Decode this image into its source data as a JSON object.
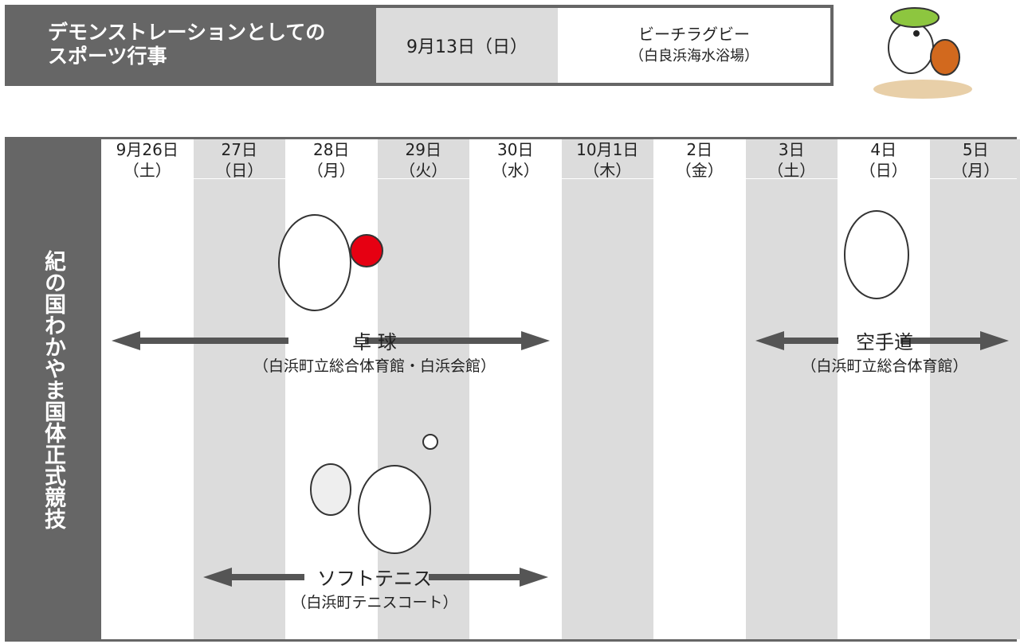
{
  "header": {
    "title_lines": [
      "デモンストレーションとしての",
      "スポーツ行事"
    ],
    "date": "9月13日（日）",
    "event": "ビーチラグビー",
    "venue": "（白良浜海水浴場）"
  },
  "schedule": {
    "row_label": "紀の国わかやま国体正式競技",
    "days": [
      {
        "date": "9月26日",
        "weekday": "（土）"
      },
      {
        "date": "27日",
        "weekday": "（日）"
      },
      {
        "date": "28日",
        "weekday": "（月）"
      },
      {
        "date": "29日",
        "weekday": "（火）"
      },
      {
        "date": "30日",
        "weekday": "（水）"
      },
      {
        "date": "10月1日",
        "weekday": "（木）"
      },
      {
        "date": "2日",
        "weekday": "（金）"
      },
      {
        "date": "3日",
        "weekday": "（土）"
      },
      {
        "date": "4日",
        "weekday": "（日）"
      },
      {
        "date": "5日",
        "weekday": "（月）"
      }
    ],
    "events": [
      {
        "name": "卓 球",
        "venue": "（白浜町立総合体育館・白浜会館）"
      },
      {
        "name": "空手道",
        "venue": "（白浜町立総合体育館）"
      },
      {
        "name": "ソフトテニス",
        "venue": "（白浜町テニスコート）"
      }
    ]
  }
}
